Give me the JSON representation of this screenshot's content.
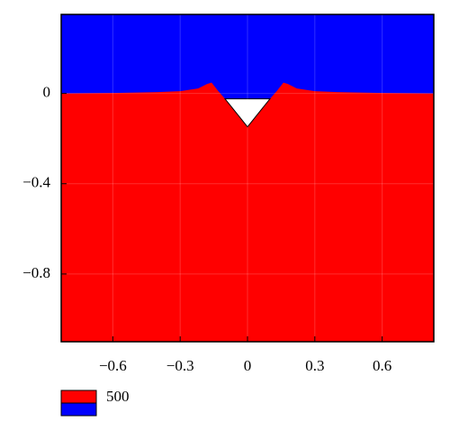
{
  "chart_data": {
    "type": "area",
    "x": [
      -0.83,
      -0.6,
      -0.4,
      -0.3,
      -0.22,
      -0.18,
      -0.16,
      -0.13,
      -0.1,
      0.1,
      0.13,
      0.16,
      0.18,
      0.22,
      0.3,
      0.4,
      0.6,
      0.83
    ],
    "series": [
      {
        "name": "500",
        "color": "#ff0000",
        "values": [
          0.0,
          0.002,
          0.006,
          0.01,
          0.022,
          0.042,
          0.048,
          0.01,
          -0.024,
          -0.024,
          0.01,
          0.048,
          0.042,
          0.022,
          0.01,
          0.006,
          0.002,
          0.0
        ]
      },
      {
        "name": null,
        "color": "#0000ff"
      }
    ],
    "hole": {
      "x": [
        -0.1,
        0,
        0.1
      ],
      "y": [
        -0.024,
        -0.148,
        -0.024
      ],
      "color": "#ffffff"
    },
    "xlim": [
      -0.83,
      0.83
    ],
    "ylim": [
      -1.1,
      0.35
    ],
    "xticks": [
      {
        "value": -0.6,
        "label": "−0.6"
      },
      {
        "value": -0.3,
        "label": "−0.3"
      },
      0,
      0.3,
      0.6
    ],
    "yticks": [
      {
        "value": -0.8,
        "label": "−0.8"
      },
      {
        "value": -0.4,
        "label": "−0.4"
      },
      0
    ],
    "grid": true,
    "legend": "bottom-left"
  }
}
